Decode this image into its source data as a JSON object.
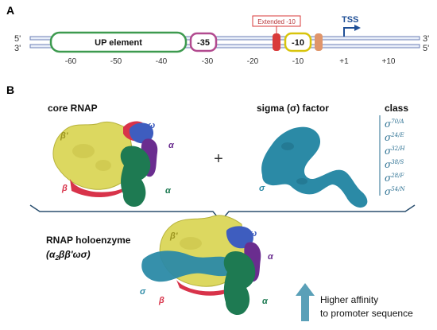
{
  "panel_a": {
    "label": "A",
    "strand_top_left": "5'",
    "strand_bottom_left": "3'",
    "strand_top_right": "3'",
    "strand_bottom_right": "5'",
    "up_element": "UP element",
    "minus35": "-35",
    "minus10": "-10",
    "extended_minus10": "Extended -10",
    "tss": "TSS",
    "ticks": [
      "-60",
      "-50",
      "-40",
      "-30",
      "-20",
      "-10",
      "+1",
      "+10"
    ]
  },
  "panel_b": {
    "label": "B",
    "core_rnap": "core RNAP",
    "sigma_factor": "sigma (σ) factor",
    "class_heading": "class",
    "plus": "+",
    "subunits": {
      "beta_prime": "β'",
      "beta": "β",
      "omega": "ω",
      "alpha": "α",
      "sigma": "σ"
    },
    "sigma_classes": [
      {
        "base": "σ",
        "sup": "70/A"
      },
      {
        "base": "σ",
        "sup": "24/E"
      },
      {
        "base": "σ",
        "sup": "32/H"
      },
      {
        "base": "σ",
        "sup": "38/S"
      },
      {
        "base": "σ",
        "sup": "28/F"
      },
      {
        "base": "σ",
        "sup": "54/N"
      }
    ],
    "holoenzyme_line1": "RNAP holoenzyme",
    "holoenzyme_line2_a": "(α",
    "holoenzyme_line2_sub": "2",
    "holoenzyme_line2_b": "ββ'ωσ)",
    "affinity_line1": "Higher affinity",
    "affinity_line2": "to promoter sequence"
  },
  "colors": {
    "dna": "#6b7fb5",
    "up_element": "#3d9a4f",
    "minus35": "#b24a8f",
    "minus10": "#d8c40c",
    "extended": "#d93a3a",
    "discriminator": "#e0956a",
    "tss_arrow": "#1f4f96",
    "beta_prime": "#dcd860",
    "beta": "#d8334a",
    "omega": "#3e5dbf",
    "alpha_purple": "#6a2d8f",
    "alpha_green": "#1e7a52",
    "sigma": "#2b8aa6",
    "affinity_arrow": "#5aa0b8"
  }
}
